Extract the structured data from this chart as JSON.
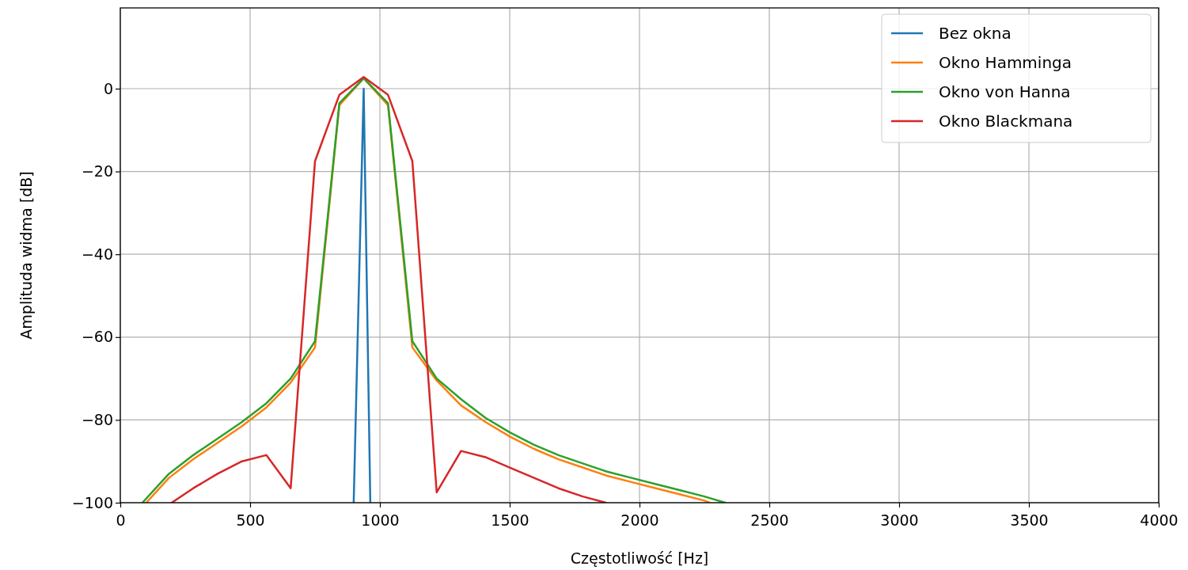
{
  "chart_data": {
    "type": "line",
    "xlabel": "Częstotliwość [Hz]",
    "ylabel": "Amplituda widma [dB]",
    "xlim": [
      0,
      4000
    ],
    "ylim": [
      -100,
      19.5
    ],
    "xticks": [
      0,
      500,
      1000,
      1500,
      2000,
      2500,
      3000,
      3500,
      4000
    ],
    "yticks": [
      {
        "value": -100,
        "label": "−100"
      },
      {
        "value": -80,
        "label": "−80"
      },
      {
        "value": -60,
        "label": "−60"
      },
      {
        "value": -40,
        "label": "−40"
      },
      {
        "value": -20,
        "label": "−20"
      },
      0
    ],
    "grid": true,
    "legend": "top right",
    "marker": "none",
    "line_style": "solid",
    "series": [
      {
        "name": "Bez okna",
        "color": "#1f77b4",
        "x": [
          899,
          937.5,
          963
        ],
        "values": [
          -100,
          0,
          -100
        ]
      },
      {
        "name": "Okno Hamminga",
        "color": "#ff7f0e",
        "x": [
          100,
          187.5,
          281.25,
          375,
          468.75,
          562.5,
          656.25,
          750,
          843.75,
          937.5,
          1031.25,
          1125,
          1218.75,
          1312.5,
          1406.25,
          1500,
          1593.75,
          1687.5,
          1781.25,
          1875,
          1968.75,
          2062.5,
          2156.25,
          2250,
          2270
        ],
        "values": [
          -100,
          -94,
          -89.5,
          -85.5,
          -81.5,
          -77,
          -71,
          -62.5,
          -4,
          2.5,
          -4,
          -62.5,
          -70.5,
          -76.5,
          -80.5,
          -84,
          -87,
          -89.5,
          -91.5,
          -93.5,
          -95,
          -96.5,
          -98,
          -99.5,
          -100
        ]
      },
      {
        "name": "Okno von Hanna",
        "color": "#2ca02c",
        "x": [
          85,
          187.5,
          281.25,
          375,
          468.75,
          562.5,
          656.25,
          750,
          843.75,
          937.5,
          1031.25,
          1125,
          1218.75,
          1312.5,
          1406.25,
          1500,
          1593.75,
          1687.5,
          1781.25,
          1875,
          1968.75,
          2062.5,
          2156.25,
          2250,
          2330
        ],
        "values": [
          -100,
          -93,
          -88.5,
          -84.5,
          -80.5,
          -76,
          -70,
          -61,
          -3.5,
          2.5,
          -3.5,
          -61,
          -70,
          -75,
          -79.5,
          -83,
          -86,
          -88.5,
          -90.5,
          -92.5,
          -94,
          -95.5,
          -97,
          -98.5,
          -100
        ]
      },
      {
        "name": "Okno Blackmana",
        "color": "#d62728",
        "x": [
          198,
          281.25,
          375,
          468.75,
          562.5,
          656.25,
          750,
          843.75,
          937.5,
          1031.25,
          1125,
          1218.75,
          1312.5,
          1406.25,
          1500,
          1593.75,
          1687.5,
          1781.25,
          1870
        ],
        "values": [
          -100,
          -96.5,
          -93,
          -90,
          -88.5,
          -96.5,
          -17.5,
          -1.5,
          2.8,
          -1.5,
          -17.5,
          -97.5,
          -87.5,
          -89,
          -91.5,
          -94,
          -96.5,
          -98.5,
          -100
        ]
      }
    ]
  }
}
